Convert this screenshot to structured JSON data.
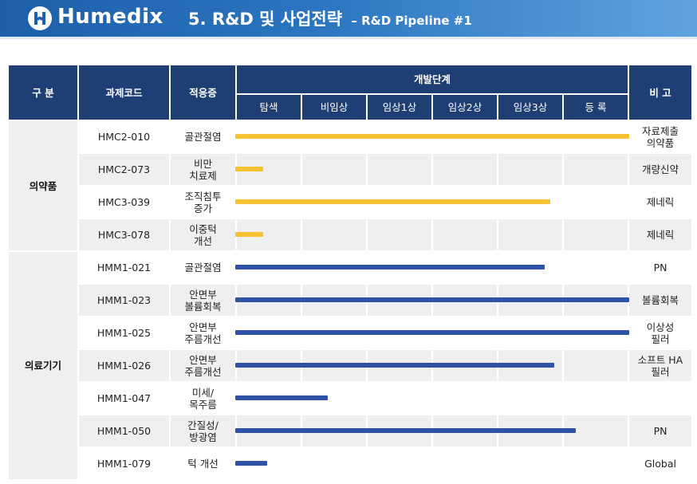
{
  "header": {
    "brand": "Humedix",
    "title": "5. R&D 및 사업전략",
    "subtitle": "– R&D Pipeline #1"
  },
  "table": {
    "headers": {
      "category": "구 분",
      "code": "과제코드",
      "indication": "적응증",
      "stage_group": "개발단계",
      "note": "비 고",
      "stages": [
        "탐색",
        "비임상",
        "임상1상",
        "임상2상",
        "임상3상",
        "등 록"
      ]
    },
    "categories": {
      "drug": "의약품",
      "device": "의료기기"
    },
    "rows": [
      {
        "code": "HMC2-010",
        "indication": "골관절염",
        "note": "자료제출\n의약품",
        "progress": 1.0,
        "type": "drug"
      },
      {
        "code": "HMC2-073",
        "indication": "비만\n치료제",
        "note": "개량신약",
        "progress": 0.07,
        "type": "drug"
      },
      {
        "code": "HMC3-039",
        "indication": "조직침투\n증가",
        "note": "제네릭",
        "progress": 0.8,
        "type": "drug"
      },
      {
        "code": "HMC3-078",
        "indication": "이중턱\n개선",
        "note": "제네릭",
        "progress": 0.07,
        "type": "drug"
      },
      {
        "code": "HMM1-021",
        "indication": "골관절염",
        "note": "PN",
        "progress": 0.785,
        "type": "device"
      },
      {
        "code": "HMM1-023",
        "indication": "안면부\n볼륨회복",
        "note": "볼륨회복",
        "progress": 1.0,
        "type": "device"
      },
      {
        "code": "HMM1-025",
        "indication": "안면부\n주름개선",
        "note": "이상성\n필러",
        "progress": 1.0,
        "type": "device"
      },
      {
        "code": "HMM1-026",
        "indication": "안면부\n주름개선",
        "note": "소프트 HA\n필러",
        "progress": 0.81,
        "type": "device"
      },
      {
        "code": "HMM1-047",
        "indication": "미세/\n목주름",
        "note": "",
        "progress": 0.235,
        "type": "device"
      },
      {
        "code": "HMM1-050",
        "indication": "간질성/\n방광염",
        "note": "PN",
        "progress": 0.865,
        "type": "device"
      },
      {
        "code": "HMM1-079",
        "indication": "턱 개선",
        "note": "Global",
        "progress": 0.08,
        "type": "device"
      }
    ]
  },
  "colors": {
    "header_blue": "#1d5fa9",
    "table_header": "#1f3e73",
    "drug_bar": "#f6c232",
    "device_bar": "#2e53a6"
  },
  "watermark": "Humedix"
}
